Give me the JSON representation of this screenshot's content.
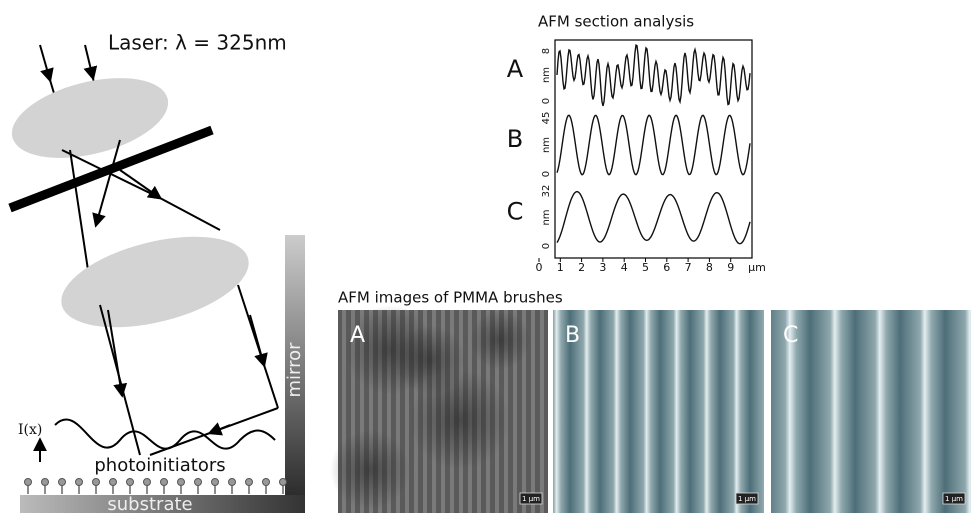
{
  "setup": {
    "laser_label": "Laser: λ = 325nm",
    "intensity_label": "I(x)",
    "photoinitiators": "photoinitiators",
    "substrate": "substrate",
    "mirror": "mirror"
  },
  "section_analysis": {
    "title": "AFM section analysis",
    "profiles": [
      {
        "label": "A",
        "unit": "nm",
        "ticks": [
          8,
          0
        ]
      },
      {
        "label": "B",
        "unit": "nm",
        "ticks": [
          45,
          0
        ]
      },
      {
        "label": "C",
        "unit": "nm",
        "ticks": [
          32,
          0
        ]
      }
    ],
    "x_ticks": [
      0,
      1,
      2,
      3,
      4,
      5,
      6,
      7,
      8,
      9
    ],
    "x_unit": "μm"
  },
  "images": {
    "title": "AFM images of PMMA brushes",
    "panels": [
      {
        "label": "A",
        "scale_bar": "1 μm"
      },
      {
        "label": "B",
        "scale_bar": "1 μm"
      },
      {
        "label": "C",
        "scale_bar": "1 μm"
      }
    ]
  }
}
